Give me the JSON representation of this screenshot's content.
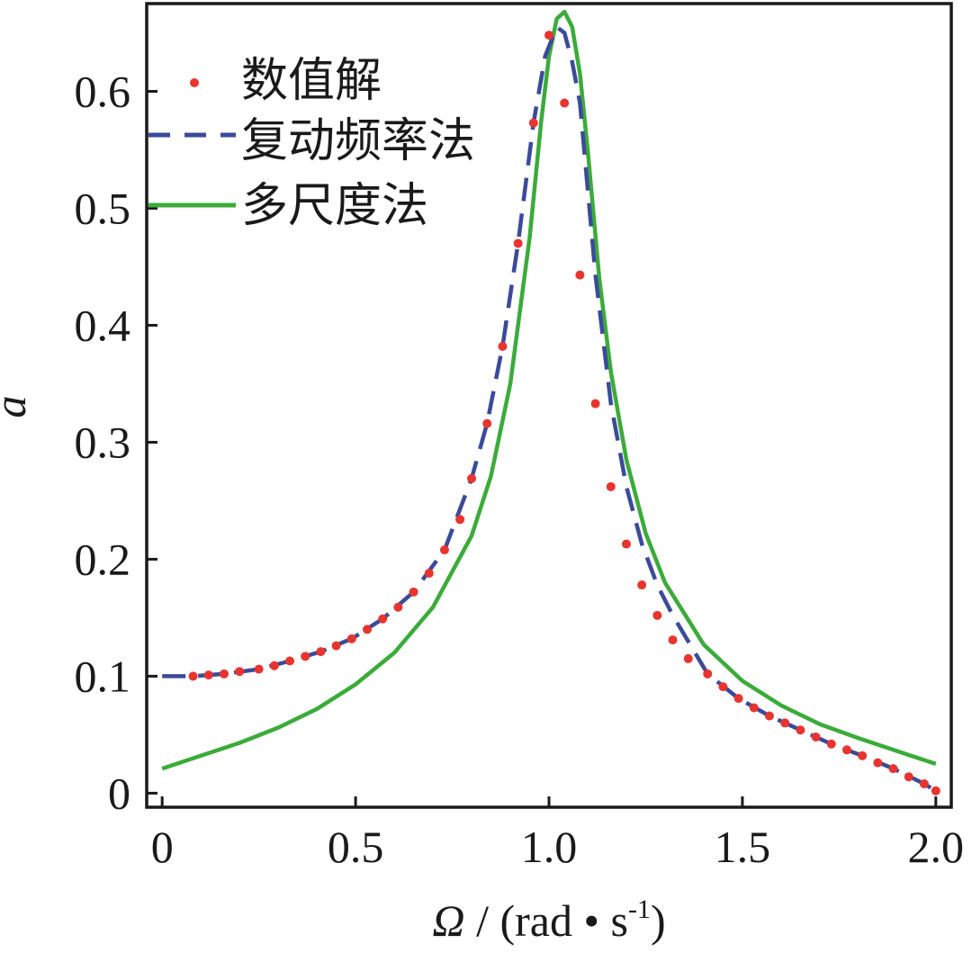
{
  "chart_data": {
    "type": "line",
    "xlabel_symbol": "Ω",
    "xlabel_unit": " / (rad • s",
    "xlabel_exp": "-1",
    "xlabel_close": ")",
    "ylabel": "a",
    "xlim": [
      -0.04,
      2.04
    ],
    "ylim": [
      -0.012,
      0.675
    ],
    "xticks": [
      0,
      0.5,
      1.0,
      1.5,
      2.0
    ],
    "xtick_labels": [
      "0",
      "0.5",
      "1.0",
      "1.5",
      "2.0"
    ],
    "yticks": [
      0,
      0.1,
      0.2,
      0.3,
      0.4,
      0.5,
      0.6
    ],
    "ytick_labels": [
      "0",
      "0.1",
      "0.2",
      "0.3",
      "0.4",
      "0.5",
      "0.6"
    ],
    "grid": false,
    "legend_position": "top-left",
    "series": [
      {
        "name": "数值解",
        "style": "markers",
        "color": "#e8342e",
        "x": [
          0.08,
          0.12,
          0.16,
          0.2,
          0.25,
          0.29,
          0.33,
          0.37,
          0.41,
          0.45,
          0.49,
          0.53,
          0.57,
          0.61,
          0.65,
          0.69,
          0.73,
          0.77,
          0.8,
          0.84,
          0.88,
          0.92,
          0.96,
          1.0,
          1.04,
          1.08,
          1.12,
          1.16,
          1.2,
          1.24,
          1.28,
          1.32,
          1.36,
          1.41,
          1.45,
          1.49,
          1.53,
          1.57,
          1.61,
          1.65,
          1.69,
          1.73,
          1.77,
          1.81,
          1.85,
          1.89,
          1.93,
          1.97,
          2.0
        ],
        "y": [
          0.1,
          0.101,
          0.102,
          0.104,
          0.106,
          0.109,
          0.113,
          0.117,
          0.121,
          0.126,
          0.132,
          0.14,
          0.149,
          0.159,
          0.172,
          0.188,
          0.208,
          0.234,
          0.269,
          0.316,
          0.382,
          0.47,
          0.573,
          0.648,
          0.59,
          0.443,
          0.333,
          0.262,
          0.213,
          0.178,
          0.152,
          0.131,
          0.115,
          0.102,
          0.091,
          0.081,
          0.073,
          0.066,
          0.06,
          0.054,
          0.048,
          0.042,
          0.037,
          0.032,
          0.026,
          0.021,
          0.014,
          0.008,
          0.002
        ]
      },
      {
        "name": "复动频率法",
        "style": "dashed",
        "color": "#3b4a9a",
        "x": [
          0.0,
          0.08,
          0.16,
          0.25,
          0.33,
          0.41,
          0.49,
          0.57,
          0.65,
          0.73,
          0.8,
          0.84,
          0.88,
          0.92,
          0.96,
          0.99,
          1.02,
          1.04,
          1.06,
          1.08,
          1.12,
          1.16,
          1.2,
          1.24,
          1.28,
          1.32,
          1.41,
          1.49,
          1.57,
          1.65,
          1.73,
          1.81,
          1.89,
          1.97,
          2.0
        ],
        "y": [
          0.1,
          0.1,
          0.102,
          0.106,
          0.113,
          0.121,
          0.132,
          0.149,
          0.172,
          0.208,
          0.269,
          0.316,
          0.382,
          0.47,
          0.573,
          0.63,
          0.655,
          0.65,
          0.625,
          0.59,
          0.443,
          0.333,
          0.262,
          0.213,
          0.178,
          0.152,
          0.102,
          0.081,
          0.066,
          0.054,
          0.042,
          0.032,
          0.021,
          0.008,
          0.002
        ]
      },
      {
        "name": "多尺度法",
        "style": "solid",
        "color": "#3bab3a",
        "x": [
          0.0,
          0.1,
          0.2,
          0.3,
          0.4,
          0.5,
          0.6,
          0.7,
          0.8,
          0.85,
          0.9,
          0.95,
          0.98,
          1.0,
          1.02,
          1.04,
          1.06,
          1.08,
          1.1,
          1.13,
          1.16,
          1.2,
          1.25,
          1.3,
          1.4,
          1.5,
          1.6,
          1.7,
          1.8,
          1.9,
          2.0
        ],
        "y": [
          0.021,
          0.032,
          0.043,
          0.056,
          0.072,
          0.093,
          0.12,
          0.159,
          0.22,
          0.271,
          0.35,
          0.475,
          0.575,
          0.63,
          0.662,
          0.668,
          0.655,
          0.615,
          0.55,
          0.44,
          0.36,
          0.285,
          0.222,
          0.18,
          0.127,
          0.096,
          0.075,
          0.059,
          0.047,
          0.036,
          0.025
        ]
      }
    ]
  }
}
